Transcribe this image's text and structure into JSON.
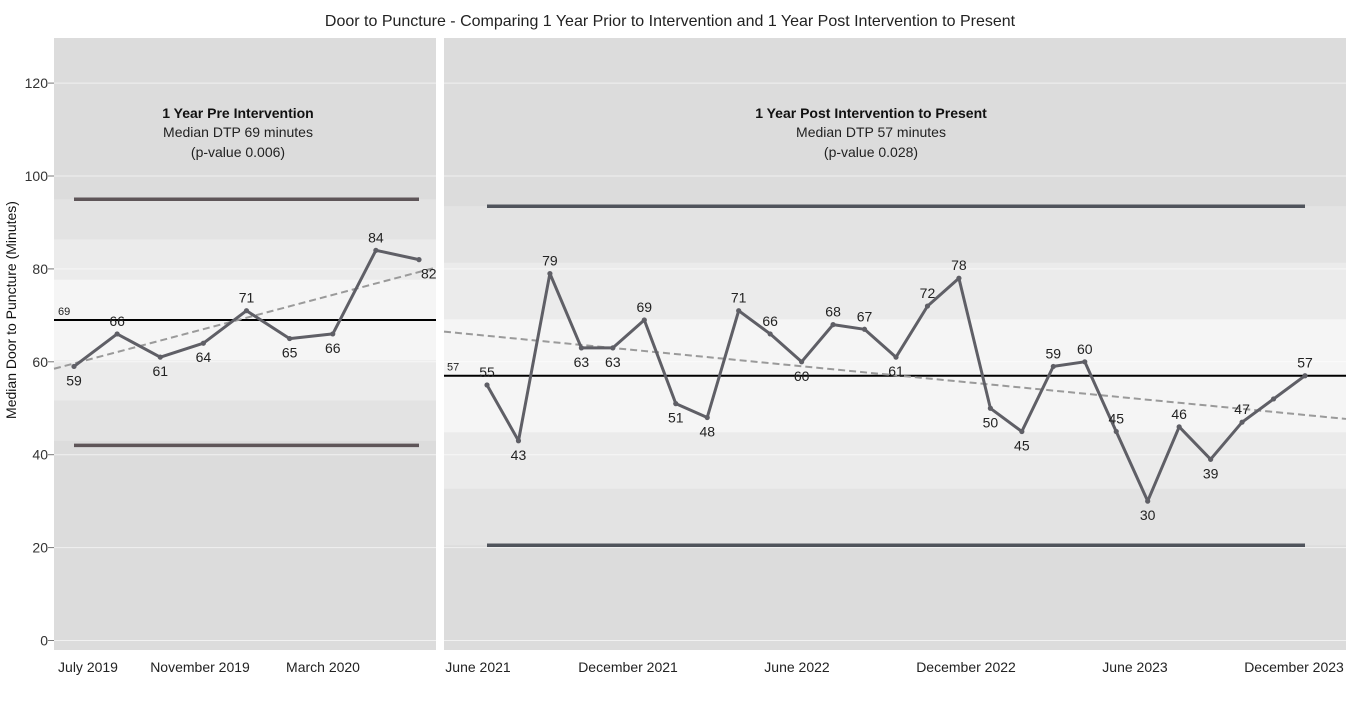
{
  "chart_data": {
    "type": "line",
    "title": "Door to Puncture - Comparing 1 Year Prior to Intervention and 1 Year Post Intervention to Present",
    "ylabel": "Median Door to Puncture  (Minutes)",
    "ylim": [
      0,
      130
    ],
    "yticks": [
      "0",
      "20",
      "40",
      "60",
      "80",
      "100",
      "120"
    ],
    "panels": [
      {
        "name": "pre",
        "annotation_title": "1 Year Pre Intervention",
        "annotation_median": "Median DTP 69 minutes",
        "annotation_pvalue": "(p-value 0.006)",
        "median": 69,
        "median_label": "69",
        "ucl": 95,
        "lcl": 42,
        "trend": [
          58.5,
          80.3
        ],
        "values": [
          59,
          66,
          61,
          64,
          71,
          65,
          66,
          84,
          82
        ],
        "labels": [
          "59",
          "66",
          "61",
          "64",
          "71",
          "65",
          "66",
          "84",
          "82"
        ],
        "xticks": [
          "July 2019",
          "November 2019",
          "March 2020"
        ]
      },
      {
        "name": "post",
        "annotation_title": "1 Year Post Intervention to Present",
        "annotation_median": "Median DTP 57 minutes",
        "annotation_pvalue": "(p-value 0.028)",
        "median": 57,
        "median_label": "57",
        "ucl": 93.5,
        "lcl": 20.5,
        "trend": [
          66.5,
          47.7
        ],
        "values": [
          55,
          43,
          79,
          63,
          63,
          69,
          51,
          48,
          71,
          66,
          60,
          68,
          67,
          61,
          72,
          78,
          50,
          45,
          59,
          60,
          45,
          30,
          46,
          39,
          47,
          52,
          57
        ],
        "labels": [
          "55",
          "43",
          "79",
          "63",
          "63",
          "69",
          "51",
          "48",
          "71",
          "66",
          "60",
          "68",
          "67",
          "61",
          "72",
          "78",
          "50",
          "45",
          "59",
          "60",
          "45",
          "30",
          "46",
          "39",
          "47",
          "",
          "57"
        ],
        "xticks": [
          "June 2021",
          "December 2021",
          "June 2022",
          "December 2022",
          "June 2023",
          "December 2023"
        ]
      }
    ]
  }
}
